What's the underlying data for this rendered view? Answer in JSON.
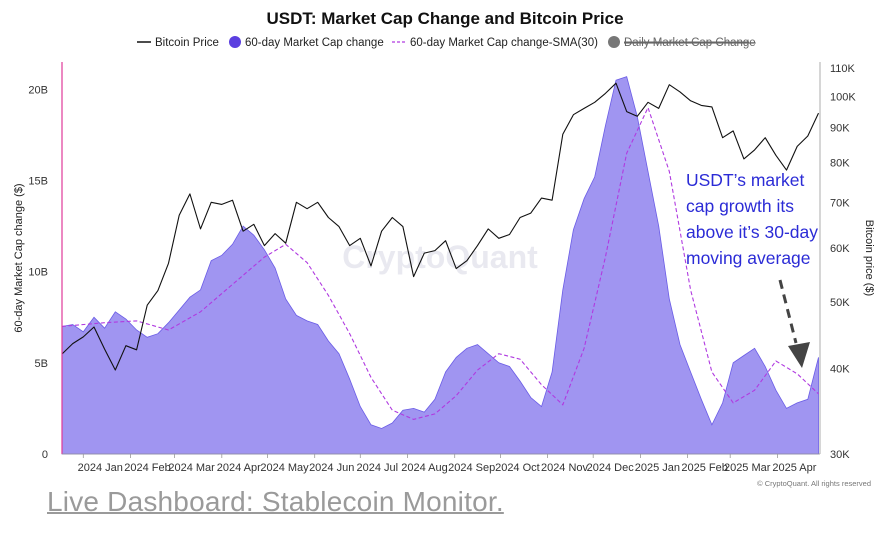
{
  "footer": {
    "link_text": "Live Dashboard: Stablecoin Monitor."
  },
  "colors": {
    "area": "#9b8ff0",
    "area_stroke": "#6a5ce6",
    "sma": "#b03ae0",
    "price": "#111111",
    "annotation": "#2b2bd6",
    "left_axis_line": "#e03a9a"
  },
  "chart_data": {
    "type": "area",
    "title": "USDT: Market Cap Change and Bitcoin Price",
    "legend": [
      "Bitcoin Price",
      "60-day Market Cap change",
      "60-day Market Cap change-SMA(30)",
      "Daily Market Cap Change"
    ],
    "legend_placement": "top",
    "ylabel_left": "60-day Market Cap change ($)",
    "ylabel_right": "Bitcoin price ($)",
    "y_left_ticks": [
      "0",
      "5B",
      "10B",
      "15B",
      "20B"
    ],
    "y_left_range": [
      0,
      21500000000
    ],
    "y_right_ticks": [
      "30K",
      "40K",
      "50K",
      "60K",
      "70K",
      "80K",
      "90K",
      "100K",
      "110K"
    ],
    "y_right_range": [
      30000,
      110000
    ],
    "y_right_scale": "log",
    "x_ticks": [
      "2024 Jan",
      "2024 Feb",
      "2024 Mar",
      "2024 Apr",
      "2024 May",
      "2024 Jun",
      "2024 Jul",
      "2024 Aug",
      "2024 Sep",
      "2024 Oct",
      "2024 Nov",
      "2024 Dec",
      "2025 Jan",
      "2025 Feb",
      "2025 Mar",
      "2025 Apr"
    ],
    "x_range": [
      "2023-12-18",
      "2025-04-29"
    ],
    "annotation": "USDT's market cap growth its above it's 30-day moving average",
    "watermark": "CryptoQuant",
    "copyright": "© CryptoQuant. All rights reserved",
    "series": [
      {
        "name": "60-day Market Cap change",
        "unit": "B",
        "points": [
          [
            "2023-12-18",
            7.0
          ],
          [
            "2023-12-25",
            7.1
          ],
          [
            "2024-01-01",
            6.7
          ],
          [
            "2024-01-08",
            7.5
          ],
          [
            "2024-01-15",
            6.9
          ],
          [
            "2024-01-22",
            7.8
          ],
          [
            "2024-01-29",
            7.4
          ],
          [
            "2024-02-05",
            6.8
          ],
          [
            "2024-02-12",
            6.4
          ],
          [
            "2024-02-19",
            6.6
          ],
          [
            "2024-02-26",
            7.2
          ],
          [
            "2024-03-04",
            7.9
          ],
          [
            "2024-03-11",
            8.6
          ],
          [
            "2024-03-18",
            9.0
          ],
          [
            "2024-03-25",
            10.6
          ],
          [
            "2024-04-01",
            10.9
          ],
          [
            "2024-04-08",
            11.5
          ],
          [
            "2024-04-15",
            12.5
          ],
          [
            "2024-04-22",
            12.0
          ],
          [
            "2024-04-29",
            11.2
          ],
          [
            "2024-05-06",
            10.2
          ],
          [
            "2024-05-13",
            8.5
          ],
          [
            "2024-05-20",
            7.6
          ],
          [
            "2024-05-27",
            7.3
          ],
          [
            "2024-06-03",
            7.1
          ],
          [
            "2024-06-10",
            6.2
          ],
          [
            "2024-06-17",
            5.5
          ],
          [
            "2024-06-24",
            4.1
          ],
          [
            "2024-07-01",
            2.6
          ],
          [
            "2024-07-08",
            1.6
          ],
          [
            "2024-07-15",
            1.4
          ],
          [
            "2024-07-22",
            1.7
          ],
          [
            "2024-07-29",
            2.4
          ],
          [
            "2024-08-05",
            2.5
          ],
          [
            "2024-08-12",
            2.3
          ],
          [
            "2024-08-19",
            3.0
          ],
          [
            "2024-08-26",
            4.5
          ],
          [
            "2024-09-02",
            5.3
          ],
          [
            "2024-09-09",
            5.8
          ],
          [
            "2024-09-16",
            6.0
          ],
          [
            "2024-09-23",
            5.5
          ],
          [
            "2024-09-30",
            5.0
          ],
          [
            "2024-10-07",
            4.8
          ],
          [
            "2024-10-14",
            4.0
          ],
          [
            "2024-10-21",
            3.1
          ],
          [
            "2024-10-28",
            2.6
          ],
          [
            "2024-11-04",
            4.5
          ],
          [
            "2024-11-11",
            9.0
          ],
          [
            "2024-11-18",
            12.3
          ],
          [
            "2024-11-25",
            14.0
          ],
          [
            "2024-12-02",
            15.2
          ],
          [
            "2024-12-09",
            18.0
          ],
          [
            "2024-12-16",
            20.5
          ],
          [
            "2024-12-23",
            20.7
          ],
          [
            "2024-12-30",
            18.5
          ],
          [
            "2025-01-06",
            15.5
          ],
          [
            "2025-01-13",
            12.5
          ],
          [
            "2025-01-20",
            8.5
          ],
          [
            "2025-01-27",
            6.0
          ],
          [
            "2025-02-03",
            4.5
          ],
          [
            "2025-02-10",
            3.0
          ],
          [
            "2025-02-17",
            1.6
          ],
          [
            "2025-02-24",
            2.8
          ],
          [
            "2025-03-03",
            5.0
          ],
          [
            "2025-03-10",
            5.4
          ],
          [
            "2025-03-17",
            5.8
          ],
          [
            "2025-03-24",
            4.8
          ],
          [
            "2025-03-31",
            3.5
          ],
          [
            "2025-04-07",
            2.5
          ],
          [
            "2025-04-14",
            2.8
          ],
          [
            "2025-04-21",
            3.0
          ],
          [
            "2025-04-28",
            5.3
          ]
        ]
      },
      {
        "name": "60-day Market Cap change-SMA(30)",
        "unit": "B",
        "points": [
          [
            "2023-12-18",
            7.0
          ],
          [
            "2024-01-15",
            7.2
          ],
          [
            "2024-02-05",
            7.3
          ],
          [
            "2024-02-26",
            6.8
          ],
          [
            "2024-03-18",
            7.8
          ],
          [
            "2024-04-08",
            9.3
          ],
          [
            "2024-04-29",
            10.8
          ],
          [
            "2024-05-13",
            11.5
          ],
          [
            "2024-05-27",
            10.5
          ],
          [
            "2024-06-10",
            8.7
          ],
          [
            "2024-06-24",
            6.6
          ],
          [
            "2024-07-08",
            4.2
          ],
          [
            "2024-07-22",
            2.4
          ],
          [
            "2024-08-05",
            1.9
          ],
          [
            "2024-08-19",
            2.2
          ],
          [
            "2024-09-02",
            3.2
          ],
          [
            "2024-09-16",
            4.6
          ],
          [
            "2024-09-30",
            5.5
          ],
          [
            "2024-10-14",
            5.2
          ],
          [
            "2024-10-28",
            3.8
          ],
          [
            "2024-11-11",
            2.7
          ],
          [
            "2024-11-25",
            5.8
          ],
          [
            "2024-12-09",
            10.8
          ],
          [
            "2024-12-23",
            16.5
          ],
          [
            "2025-01-06",
            19.0
          ],
          [
            "2025-01-20",
            15.5
          ],
          [
            "2025-02-03",
            9.0
          ],
          [
            "2025-02-17",
            4.5
          ],
          [
            "2025-03-03",
            2.8
          ],
          [
            "2025-03-17",
            3.5
          ],
          [
            "2025-03-31",
            5.1
          ],
          [
            "2025-04-14",
            4.4
          ],
          [
            "2025-04-28",
            3.3
          ]
        ]
      },
      {
        "name": "Bitcoin Price",
        "unit": "USD",
        "points": [
          [
            "2023-12-18",
            42000
          ],
          [
            "2023-12-25",
            43500
          ],
          [
            "2024-01-01",
            44500
          ],
          [
            "2024-01-08",
            46000
          ],
          [
            "2024-01-15",
            42700
          ],
          [
            "2024-01-22",
            39800
          ],
          [
            "2024-01-29",
            43200
          ],
          [
            "2024-02-05",
            42600
          ],
          [
            "2024-02-12",
            49500
          ],
          [
            "2024-02-19",
            52000
          ],
          [
            "2024-02-26",
            57000
          ],
          [
            "2024-03-04",
            67000
          ],
          [
            "2024-03-11",
            72000
          ],
          [
            "2024-03-18",
            64000
          ],
          [
            "2024-03-25",
            70000
          ],
          [
            "2024-04-01",
            69500
          ],
          [
            "2024-04-08",
            70500
          ],
          [
            "2024-04-15",
            63500
          ],
          [
            "2024-04-22",
            65000
          ],
          [
            "2024-04-29",
            60500
          ],
          [
            "2024-05-06",
            63000
          ],
          [
            "2024-05-13",
            61000
          ],
          [
            "2024-05-20",
            70000
          ],
          [
            "2024-05-27",
            68500
          ],
          [
            "2024-06-03",
            70000
          ],
          [
            "2024-06-10",
            66500
          ],
          [
            "2024-06-17",
            64500
          ],
          [
            "2024-06-24",
            60500
          ],
          [
            "2024-07-01",
            62000
          ],
          [
            "2024-07-08",
            56500
          ],
          [
            "2024-07-15",
            63500
          ],
          [
            "2024-07-22",
            66500
          ],
          [
            "2024-07-29",
            64500
          ],
          [
            "2024-08-05",
            54500
          ],
          [
            "2024-08-12",
            59000
          ],
          [
            "2024-08-19",
            59500
          ],
          [
            "2024-08-26",
            61500
          ],
          [
            "2024-09-02",
            56000
          ],
          [
            "2024-09-09",
            57500
          ],
          [
            "2024-09-16",
            60500
          ],
          [
            "2024-09-23",
            64000
          ],
          [
            "2024-09-30",
            62000
          ],
          [
            "2024-10-07",
            62800
          ],
          [
            "2024-10-14",
            66500
          ],
          [
            "2024-10-21",
            67500
          ],
          [
            "2024-10-28",
            71000
          ],
          [
            "2024-11-04",
            70500
          ],
          [
            "2024-11-11",
            88000
          ],
          [
            "2024-11-18",
            94000
          ],
          [
            "2024-11-25",
            96000
          ],
          [
            "2024-12-02",
            98000
          ],
          [
            "2024-12-09",
            101000
          ],
          [
            "2024-12-16",
            104500
          ],
          [
            "2024-12-23",
            95000
          ],
          [
            "2024-12-30",
            93500
          ],
          [
            "2025-01-06",
            98000
          ],
          [
            "2025-01-13",
            96000
          ],
          [
            "2025-01-20",
            104000
          ],
          [
            "2025-01-27",
            101500
          ],
          [
            "2025-02-03",
            98500
          ],
          [
            "2025-02-10",
            97000
          ],
          [
            "2025-02-17",
            96500
          ],
          [
            "2025-02-24",
            87000
          ],
          [
            "2025-03-03",
            89000
          ],
          [
            "2025-03-10",
            81000
          ],
          [
            "2025-03-17",
            83500
          ],
          [
            "2025-03-24",
            87000
          ],
          [
            "2025-03-31",
            82000
          ],
          [
            "2025-04-07",
            78000
          ],
          [
            "2025-04-14",
            84500
          ],
          [
            "2025-04-21",
            87500
          ],
          [
            "2025-04-28",
            94500
          ]
        ]
      }
    ]
  }
}
